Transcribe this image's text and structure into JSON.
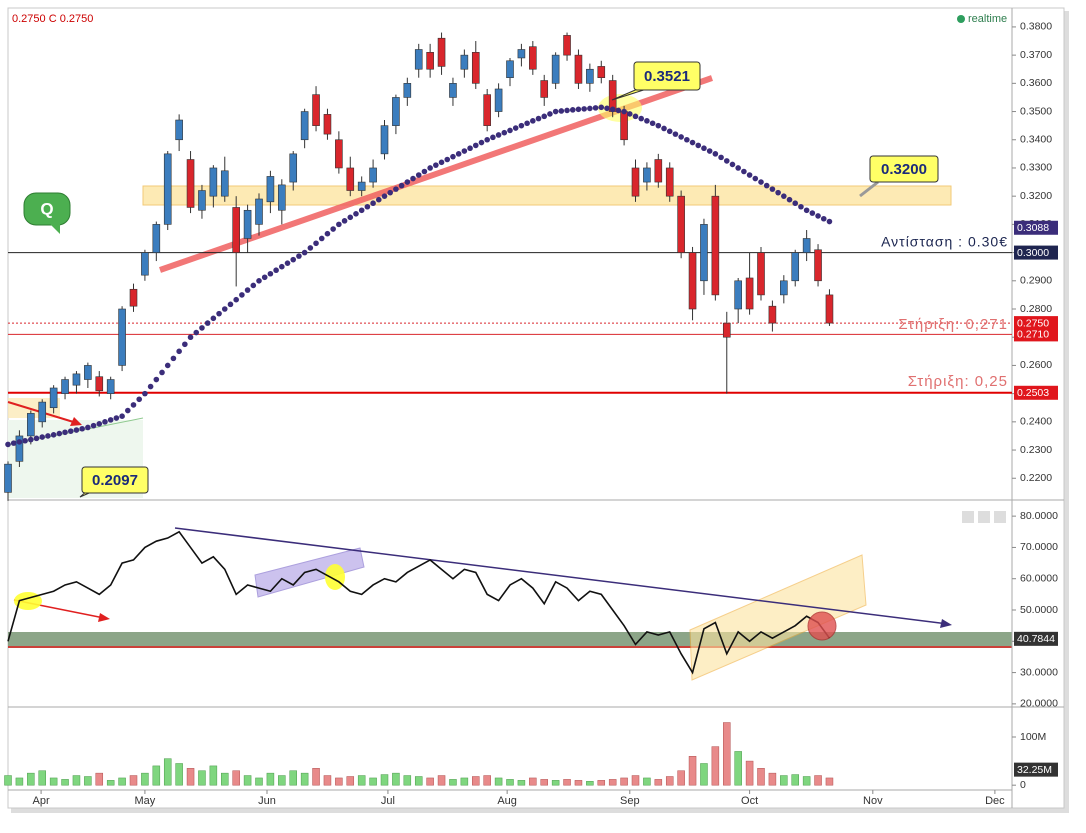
{
  "header": {
    "quote": "0.2750 C 0.2750",
    "status": "realtime"
  },
  "annotations": {
    "peak": "0.3521",
    "band": "0.3200",
    "low": "0.2097",
    "badge": "Q",
    "resistance": "Αντίσταση : 0.30€",
    "support1": "Στήριξη:  0,271",
    "support2": "Στήριξη:  0,25"
  },
  "chart_data": [
    {
      "type": "candlestick",
      "xlim": [
        0,
        176
      ],
      "ylim": [
        0.213,
        0.386
      ],
      "up_color": "#3b7dbe",
      "down_color": "#d9262c",
      "ma_color": "#3b2d7a",
      "yticks": [
        {
          "value": 0.38,
          "label": "0.3800"
        },
        {
          "value": 0.37,
          "label": "0.3700"
        },
        {
          "value": 0.36,
          "label": "0.3600"
        },
        {
          "value": 0.35,
          "label": "0.3500"
        },
        {
          "value": 0.34,
          "label": "0.3400"
        },
        {
          "value": 0.33,
          "label": "0.3300"
        },
        {
          "value": 0.32,
          "label": "0.3200"
        },
        {
          "value": 0.31,
          "label": "0.3100"
        },
        {
          "value": 0.3,
          "label": "0.3000"
        },
        {
          "value": 0.29,
          "label": "0.2900"
        },
        {
          "value": 0.28,
          "label": "0.2800"
        },
        {
          "value": 0.27,
          "label": "0.2700"
        },
        {
          "value": 0.26,
          "label": "0.2600"
        },
        {
          "value": 0.25,
          "label": "0.2500"
        },
        {
          "value": 0.24,
          "label": "0.2400"
        },
        {
          "value": 0.23,
          "label": "0.2300"
        },
        {
          "value": 0.22,
          "label": "0.2200"
        }
      ],
      "x": [
        0,
        2,
        4,
        6,
        8,
        10,
        12,
        14,
        16,
        18,
        20,
        22,
        24,
        26,
        28,
        30,
        32,
        34,
        36,
        38,
        40,
        42,
        44,
        46,
        48,
        50,
        52,
        54,
        56,
        58,
        60,
        62,
        64,
        66,
        68,
        70,
        72,
        74,
        76,
        78,
        80,
        82,
        84,
        86,
        88,
        90,
        92,
        94,
        96,
        98,
        100,
        102,
        104,
        106,
        108,
        110,
        112,
        114,
        116,
        118,
        120,
        122,
        124,
        126,
        128,
        130,
        132,
        134,
        136,
        138,
        140,
        142,
        144
      ],
      "candles": [
        [
          0.215,
          0.226,
          0.212,
          0.225
        ],
        [
          0.226,
          0.237,
          0.224,
          0.235
        ],
        [
          0.235,
          0.244,
          0.232,
          0.243
        ],
        [
          0.24,
          0.248,
          0.238,
          0.247
        ],
        [
          0.245,
          0.253,
          0.243,
          0.252
        ],
        [
          0.25,
          0.256,
          0.248,
          0.255
        ],
        [
          0.253,
          0.258,
          0.25,
          0.257
        ],
        [
          0.255,
          0.261,
          0.252,
          0.26
        ],
        [
          0.256,
          0.258,
          0.249,
          0.251
        ],
        [
          0.25,
          0.256,
          0.248,
          0.255
        ],
        [
          0.26,
          0.281,
          0.258,
          0.28
        ],
        [
          0.287,
          0.289,
          0.279,
          0.281
        ],
        [
          0.292,
          0.301,
          0.29,
          0.3
        ],
        [
          0.3,
          0.311,
          0.297,
          0.31
        ],
        [
          0.31,
          0.336,
          0.308,
          0.335
        ],
        [
          0.34,
          0.349,
          0.336,
          0.347
        ],
        [
          0.333,
          0.336,
          0.314,
          0.316
        ],
        [
          0.315,
          0.324,
          0.312,
          0.322
        ],
        [
          0.32,
          0.331,
          0.316,
          0.33
        ],
        [
          0.32,
          0.334,
          0.318,
          0.329
        ],
        [
          0.316,
          0.32,
          0.288,
          0.3
        ],
        [
          0.305,
          0.317,
          0.3,
          0.315
        ],
        [
          0.31,
          0.321,
          0.306,
          0.319
        ],
        [
          0.318,
          0.329,
          0.314,
          0.327
        ],
        [
          0.315,
          0.326,
          0.31,
          0.324
        ],
        [
          0.325,
          0.336,
          0.322,
          0.335
        ],
        [
          0.34,
          0.351,
          0.337,
          0.35
        ],
        [
          0.356,
          0.359,
          0.343,
          0.345
        ],
        [
          0.349,
          0.351,
          0.34,
          0.342
        ],
        [
          0.34,
          0.343,
          0.328,
          0.33
        ],
        [
          0.33,
          0.334,
          0.32,
          0.322
        ],
        [
          0.322,
          0.327,
          0.32,
          0.325
        ],
        [
          0.325,
          0.333,
          0.323,
          0.33
        ],
        [
          0.335,
          0.347,
          0.333,
          0.345
        ],
        [
          0.345,
          0.356,
          0.342,
          0.355
        ],
        [
          0.355,
          0.362,
          0.352,
          0.36
        ],
        [
          0.365,
          0.374,
          0.362,
          0.372
        ],
        [
          0.371,
          0.374,
          0.362,
          0.365
        ],
        [
          0.376,
          0.378,
          0.363,
          0.366
        ],
        [
          0.355,
          0.362,
          0.352,
          0.36
        ],
        [
          0.365,
          0.372,
          0.362,
          0.37
        ],
        [
          0.371,
          0.375,
          0.358,
          0.36
        ],
        [
          0.356,
          0.358,
          0.343,
          0.345
        ],
        [
          0.35,
          0.36,
          0.348,
          0.358
        ],
        [
          0.362,
          0.369,
          0.359,
          0.368
        ],
        [
          0.369,
          0.374,
          0.366,
          0.372
        ],
        [
          0.373,
          0.375,
          0.363,
          0.365
        ],
        [
          0.361,
          0.363,
          0.352,
          0.355
        ],
        [
          0.36,
          0.371,
          0.358,
          0.37
        ],
        [
          0.377,
          0.378,
          0.368,
          0.37
        ],
        [
          0.37,
          0.372,
          0.358,
          0.36
        ],
        [
          0.36,
          0.367,
          0.357,
          0.365
        ],
        [
          0.366,
          0.368,
          0.36,
          0.362
        ],
        [
          0.361,
          0.363,
          0.348,
          0.35
        ],
        [
          0.35,
          0.352,
          0.338,
          0.34
        ],
        [
          0.33,
          0.333,
          0.318,
          0.32
        ],
        [
          0.325,
          0.332,
          0.322,
          0.33
        ],
        [
          0.333,
          0.335,
          0.323,
          0.325
        ],
        [
          0.33,
          0.332,
          0.318,
          0.32
        ],
        [
          0.32,
          0.322,
          0.298,
          0.3
        ],
        [
          0.3,
          0.302,
          0.276,
          0.28
        ],
        [
          0.29,
          0.312,
          0.285,
          0.31
        ],
        [
          0.32,
          0.324,
          0.283,
          0.285
        ],
        [
          0.275,
          0.279,
          0.25,
          0.27
        ],
        [
          0.28,
          0.291,
          0.275,
          0.29
        ],
        [
          0.291,
          0.3,
          0.278,
          0.28
        ],
        [
          0.3,
          0.302,
          0.283,
          0.285
        ],
        [
          0.281,
          0.283,
          0.272,
          0.275
        ],
        [
          0.285,
          0.292,
          0.282,
          0.29
        ],
        [
          0.29,
          0.301,
          0.288,
          0.3
        ],
        [
          0.3,
          0.308,
          0.297,
          0.305
        ],
        [
          0.301,
          0.303,
          0.288,
          0.29
        ],
        [
          0.285,
          0.287,
          0.274,
          0.275
        ]
      ],
      "ma": [
        0.232,
        0.2329,
        0.2337,
        0.2346,
        0.2354,
        0.2363,
        0.2371,
        0.238,
        0.2393,
        0.2407,
        0.242,
        0.246,
        0.25,
        0.255,
        0.26,
        0.265,
        0.27,
        0.2733,
        0.2767,
        0.28,
        0.2833,
        0.2867,
        0.29,
        0.2925,
        0.295,
        0.2975,
        0.3,
        0.3033,
        0.3067,
        0.31,
        0.3125,
        0.315,
        0.3175,
        0.32,
        0.3225,
        0.325,
        0.3275,
        0.33,
        0.332,
        0.334,
        0.336,
        0.338,
        0.34,
        0.3417,
        0.3433,
        0.345,
        0.3467,
        0.3483,
        0.35,
        0.3504,
        0.3508,
        0.3511,
        0.3515,
        0.3508,
        0.35,
        0.3483,
        0.3467,
        0.345,
        0.343,
        0.341,
        0.339,
        0.337,
        0.335,
        0.3325,
        0.33,
        0.3275,
        0.325,
        0.3225,
        0.32,
        0.3175,
        0.315,
        0.313,
        0.311
      ],
      "levels": [
        {
          "value": 0.3,
          "color": "#222",
          "style": "solid"
        },
        {
          "value": 0.275,
          "color": "#d9262c",
          "style": "dashed"
        },
        {
          "value": 0.271,
          "color": "#d9262c",
          "style": "solid"
        },
        {
          "value": 0.2503,
          "color": "#e00000",
          "style": "bold"
        }
      ],
      "tags": [
        {
          "value": 0.3088,
          "label": "0.3088",
          "color": "#3b2d7a"
        },
        {
          "value": 0.3,
          "label": "0.3000",
          "color": "#1f2550"
        },
        {
          "value": 0.275,
          "label": "0.2750",
          "color": "#e0161c"
        },
        {
          "value": 0.271,
          "label": "0.2710",
          "color": "#e0161c"
        },
        {
          "value": 0.2503,
          "label": "0.2503",
          "color": "#e0161c"
        }
      ]
    },
    {
      "type": "line",
      "xlim": [
        0,
        176
      ],
      "ylim": [
        19,
        84.2
      ],
      "color": "#111",
      "yticks": [
        {
          "value": 80,
          "label": "80.0000"
        },
        {
          "value": 70,
          "label": "70.0000"
        },
        {
          "value": 60,
          "label": "60.0000"
        },
        {
          "value": 50,
          "label": "50.0000"
        },
        {
          "value": 40,
          "label": "40.0000"
        },
        {
          "value": 30,
          "label": "30.0000"
        },
        {
          "value": 20,
          "label": "20.0000"
        }
      ],
      "x": [
        0,
        2,
        4,
        6,
        8,
        10,
        12,
        14,
        16,
        18,
        20,
        22,
        24,
        26,
        28,
        30,
        32,
        34,
        36,
        38,
        40,
        42,
        44,
        46,
        48,
        50,
        52,
        54,
        56,
        58,
        60,
        62,
        64,
        66,
        68,
        70,
        72,
        74,
        76,
        78,
        80,
        82,
        84,
        86,
        88,
        90,
        92,
        94,
        96,
        98,
        100,
        102,
        104,
        106,
        108,
        110,
        112,
        114,
        116,
        118,
        120,
        122,
        124,
        126,
        128,
        130,
        132,
        134,
        136,
        138,
        140,
        142,
        144
      ],
      "values": [
        40,
        53,
        54,
        55,
        56,
        58,
        59,
        57,
        55,
        58,
        65,
        66,
        70,
        72,
        73,
        75,
        70,
        65,
        67,
        63,
        55,
        58,
        57,
        56,
        60,
        58,
        62,
        63,
        61,
        59,
        56,
        55,
        58,
        60,
        59,
        62,
        64,
        66,
        63,
        60,
        63,
        62,
        55,
        53,
        58,
        60,
        57,
        52,
        59,
        57,
        53,
        56,
        55,
        50,
        45,
        39,
        43,
        42,
        43,
        36,
        30,
        44,
        46,
        36,
        43,
        40,
        43,
        41,
        43,
        45,
        48,
        46,
        41
      ],
      "tag": 40.7844
    },
    {
      "type": "bar",
      "xlim": [
        0,
        176
      ],
      "ylim": [
        -10,
        156
      ],
      "up_color": "#7fd67f",
      "down_color": "#e88a8a",
      "tag_color": "#333",
      "yticks": [
        {
          "value": 100,
          "label": "100M"
        },
        0
      ],
      "xticks": [
        {
          "value": 5.8,
          "label": "Apr"
        },
        {
          "value": 24,
          "label": "May"
        },
        {
          "value": 45.4,
          "label": "Jun"
        },
        {
          "value": 66.6,
          "label": "Jul"
        },
        {
          "value": 87.5,
          "label": "Aug"
        },
        {
          "value": 109,
          "label": "Sep"
        },
        {
          "value": 130,
          "label": "Oct"
        },
        {
          "value": 151.6,
          "label": "Nov"
        },
        {
          "value": 173,
          "label": "Dec"
        }
      ],
      "x": [
        0,
        2,
        4,
        6,
        8,
        10,
        12,
        14,
        16,
        18,
        20,
        22,
        24,
        26,
        28,
        30,
        32,
        34,
        36,
        38,
        40,
        42,
        44,
        46,
        48,
        50,
        52,
        54,
        56,
        58,
        60,
        62,
        64,
        66,
        68,
        70,
        72,
        74,
        76,
        78,
        80,
        82,
        84,
        86,
        88,
        90,
        92,
        94,
        96,
        98,
        100,
        102,
        104,
        106,
        108,
        110,
        112,
        114,
        116,
        118,
        120,
        122,
        124,
        126,
        128,
        130,
        132,
        134,
        136,
        138,
        140,
        142,
        144
      ],
      "values": [
        20,
        15,
        25,
        30,
        15,
        12,
        20,
        18,
        25,
        10,
        15,
        20,
        25,
        40,
        55,
        45,
        35,
        30,
        40,
        25,
        30,
        20,
        15,
        25,
        20,
        30,
        25,
        35,
        20,
        15,
        18,
        20,
        15,
        22,
        25,
        20,
        18,
        15,
        20,
        12,
        15,
        18,
        20,
        15,
        12,
        10,
        15,
        12,
        10,
        12,
        10,
        8,
        10,
        12,
        15,
        20,
        15,
        12,
        18,
        30,
        60,
        45,
        80,
        130,
        70,
        50,
        35,
        25,
        20,
        22,
        18,
        20,
        15
      ],
      "tag": {
        "value": 32.25,
        "label": "32.25M"
      }
    }
  ]
}
